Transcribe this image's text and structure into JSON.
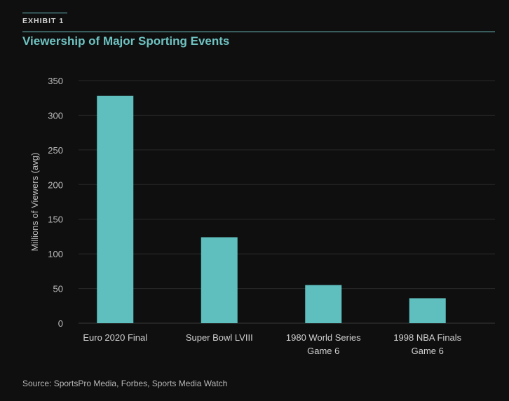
{
  "exhibit": "EXHIBIT 1",
  "source": "Source: SportsPro Media, Forbes, Sports Media Watch",
  "colors": {
    "accent": "#6fc3c2",
    "bar": "#5fbfbf",
    "background": "#0f0f0f",
    "grid": "#2a2a2a"
  },
  "chart_data": {
    "type": "bar",
    "title": "Viewership of Major Sporting Events",
    "xlabel": "",
    "ylabel": "Millions of Viewers (avg)",
    "ylim": [
      0,
      350
    ],
    "yticks": [
      0,
      50,
      100,
      150,
      200,
      250,
      300,
      350
    ],
    "grid": true,
    "categories": [
      [
        "Euro 2020 Final"
      ],
      [
        "Super Bowl LVIII"
      ],
      [
        "1980 World Series",
        "Game 6"
      ],
      [
        "1998 NBA Finals",
        "Game 6"
      ]
    ],
    "values": [
      328,
      124,
      55,
      36
    ]
  }
}
